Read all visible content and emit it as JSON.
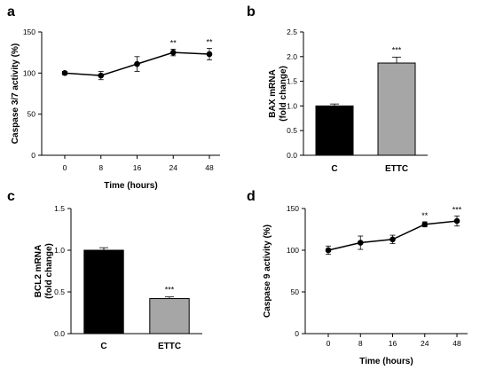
{
  "chart_data": [
    {
      "panel": "a",
      "type": "line",
      "x": [
        "0",
        "8",
        "16",
        "24",
        "48"
      ],
      "values": [
        100,
        97,
        111,
        125,
        123
      ],
      "errors": [
        2,
        5,
        9,
        4,
        7
      ],
      "significance": [
        "",
        "",
        "",
        "**",
        "**"
      ],
      "xlabel": "Time (hours)",
      "ylabel": "Caspase 3/7 activity (%)",
      "ylim": [
        0,
        150
      ],
      "yticks": [
        "0",
        "50",
        "100",
        "150"
      ],
      "grid": false
    },
    {
      "panel": "b",
      "type": "bar",
      "categories": [
        "C",
        "ETTC"
      ],
      "values": [
        1.0,
        1.87
      ],
      "errors": [
        0.04,
        0.12
      ],
      "significance": [
        "",
        "***"
      ],
      "bar_colors": [
        "#000000",
        "#a6a6a6"
      ],
      "xlabel": "",
      "ylabel": [
        "BAX mRNA",
        "(fold change)"
      ],
      "ylim": [
        0,
        2.5
      ],
      "yticks": [
        "0.0",
        "0.5",
        "1.0",
        "1.5",
        "2.0",
        "2.5"
      ],
      "grid": false
    },
    {
      "panel": "c",
      "type": "bar",
      "categories": [
        "C",
        "ETTC"
      ],
      "values": [
        1.0,
        0.42
      ],
      "errors": [
        0.03,
        0.02
      ],
      "significance": [
        "",
        "***"
      ],
      "bar_colors": [
        "#000000",
        "#a6a6a6"
      ],
      "xlabel": "",
      "ylabel": [
        "BCL2 mRNA",
        "(fold change)"
      ],
      "ylim": [
        0,
        1.5
      ],
      "yticks": [
        "0.0",
        "0.5",
        "1.0",
        "1.5"
      ],
      "grid": false
    },
    {
      "panel": "d",
      "type": "line",
      "x": [
        "0",
        "8",
        "16",
        "24",
        "48"
      ],
      "values": [
        100,
        109,
        113,
        131,
        135
      ],
      "errors": [
        5,
        8,
        5,
        3,
        6
      ],
      "significance": [
        "",
        "",
        "",
        "**",
        "***"
      ],
      "xlabel": "Time (hours)",
      "ylabel": "Caspase 9 activity (%)",
      "ylim": [
        0,
        150
      ],
      "yticks": [
        "0",
        "50",
        "100",
        "150"
      ],
      "grid": false
    }
  ]
}
